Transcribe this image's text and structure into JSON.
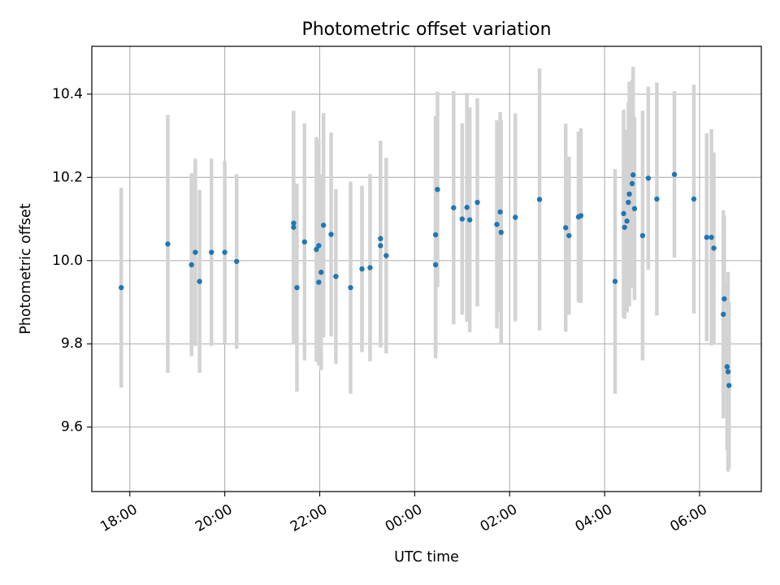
{
  "chart_data": {
    "type": "scatter",
    "title": "Photometric offset variation",
    "xlabel": "UTC time",
    "ylabel": "Photometric offset",
    "x_unit": "hours since 00:00 UTC",
    "xlim": [
      -6.8,
      7.3
    ],
    "ylim": [
      9.445,
      10.515
    ],
    "grid": true,
    "x_ticks": [
      {
        "value": -6,
        "label": "18:00"
      },
      {
        "value": -4,
        "label": "20:00"
      },
      {
        "value": -2,
        "label": "22:00"
      },
      {
        "value": 0,
        "label": "00:00"
      },
      {
        "value": 2,
        "label": "02:00"
      },
      {
        "value": 4,
        "label": "04:00"
      },
      {
        "value": 6,
        "label": "06:00"
      }
    ],
    "y_ticks": [
      {
        "value": 9.6,
        "label": "9.6"
      },
      {
        "value": 9.8,
        "label": "9.8"
      },
      {
        "value": 10.0,
        "label": "10.0"
      },
      {
        "value": 10.2,
        "label": "10.2"
      },
      {
        "value": 10.4,
        "label": "10.4"
      }
    ],
    "colors": {
      "point": "#1f77b4",
      "errorbar": "#d3d3d3",
      "grid": "#b0b0b0",
      "axis": "#000000"
    },
    "points": [
      {
        "x": -6.18,
        "y": 9.935,
        "err": 0.24
      },
      {
        "x": -5.2,
        "y": 10.04,
        "err": 0.31
      },
      {
        "x": -4.7,
        "y": 9.99,
        "err": 0.22
      },
      {
        "x": -4.62,
        "y": 10.02,
        "err": 0.225
      },
      {
        "x": -4.53,
        "y": 9.95,
        "err": 0.22
      },
      {
        "x": -4.28,
        "y": 10.02,
        "err": 0.225
      },
      {
        "x": -4.0,
        "y": 10.02,
        "err": 0.22
      },
      {
        "x": -3.75,
        "y": 9.998,
        "err": 0.21
      },
      {
        "x": -2.55,
        "y": 10.09,
        "err": 0.27
      },
      {
        "x": -2.55,
        "y": 10.08,
        "err": 0.28
      },
      {
        "x": -2.48,
        "y": 9.935,
        "err": 0.25
      },
      {
        "x": -2.32,
        "y": 10.045,
        "err": 0.285
      },
      {
        "x": -2.07,
        "y": 10.027,
        "err": 0.27
      },
      {
        "x": -2.02,
        "y": 9.948,
        "err": 0.2
      },
      {
        "x": -2.02,
        "y": 10.036,
        "err": 0.255
      },
      {
        "x": -1.97,
        "y": 9.972,
        "err": 0.235
      },
      {
        "x": -1.92,
        "y": 10.085,
        "err": 0.27
      },
      {
        "x": -1.76,
        "y": 10.063,
        "err": 0.245
      },
      {
        "x": -1.66,
        "y": 9.962,
        "err": 0.21
      },
      {
        "x": -1.35,
        "y": 9.935,
        "err": 0.255
      },
      {
        "x": -1.11,
        "y": 9.98,
        "err": 0.2
      },
      {
        "x": -0.94,
        "y": 9.983,
        "err": 0.225
      },
      {
        "x": -0.72,
        "y": 10.053,
        "err": 0.235
      },
      {
        "x": -0.72,
        "y": 10.036,
        "err": 0.245
      },
      {
        "x": -0.6,
        "y": 10.012,
        "err": 0.235
      },
      {
        "x": 0.44,
        "y": 10.062,
        "err": 0.285
      },
      {
        "x": 0.44,
        "y": 9.99,
        "err": 0.225
      },
      {
        "x": 0.48,
        "y": 10.171,
        "err": 0.235
      },
      {
        "x": 0.82,
        "y": 10.127,
        "err": 0.28
      },
      {
        "x": 1.0,
        "y": 10.1,
        "err": 0.23
      },
      {
        "x": 1.1,
        "y": 10.128,
        "err": 0.275
      },
      {
        "x": 1.16,
        "y": 10.098,
        "err": 0.27
      },
      {
        "x": 1.32,
        "y": 10.14,
        "err": 0.25
      },
      {
        "x": 1.73,
        "y": 10.087,
        "err": 0.25
      },
      {
        "x": 1.8,
        "y": 10.117,
        "err": 0.24
      },
      {
        "x": 1.82,
        "y": 10.068,
        "err": 0.27
      },
      {
        "x": 2.12,
        "y": 10.104,
        "err": 0.25
      },
      {
        "x": 2.63,
        "y": 10.147,
        "err": 0.315
      },
      {
        "x": 3.18,
        "y": 10.079,
        "err": 0.25
      },
      {
        "x": 3.25,
        "y": 10.06,
        "err": 0.19
      },
      {
        "x": 3.45,
        "y": 10.105,
        "err": 0.205
      },
      {
        "x": 3.5,
        "y": 10.108,
        "err": 0.21
      },
      {
        "x": 4.22,
        "y": 9.95,
        "err": 0.27
      },
      {
        "x": 4.4,
        "y": 10.113,
        "err": 0.25
      },
      {
        "x": 4.42,
        "y": 10.08,
        "err": 0.22
      },
      {
        "x": 4.47,
        "y": 10.095,
        "err": 0.22
      },
      {
        "x": 4.5,
        "y": 10.14,
        "err": 0.24
      },
      {
        "x": 4.52,
        "y": 10.16,
        "err": 0.27
      },
      {
        "x": 4.58,
        "y": 10.185,
        "err": 0.25
      },
      {
        "x": 4.6,
        "y": 10.206,
        "err": 0.26
      },
      {
        "x": 4.63,
        "y": 10.125,
        "err": 0.22
      },
      {
        "x": 4.8,
        "y": 10.06,
        "err": 0.3
      },
      {
        "x": 4.92,
        "y": 10.198,
        "err": 0.22
      },
      {
        "x": 5.1,
        "y": 10.148,
        "err": 0.28
      },
      {
        "x": 5.47,
        "y": 10.207,
        "err": 0.2
      },
      {
        "x": 5.88,
        "y": 10.148,
        "err": 0.275
      },
      {
        "x": 6.15,
        "y": 10.056,
        "err": 0.25
      },
      {
        "x": 6.25,
        "y": 10.056,
        "err": 0.26
      },
      {
        "x": 6.3,
        "y": 10.03,
        "err": 0.23
      },
      {
        "x": 6.52,
        "y": 9.908,
        "err": 0.2
      },
      {
        "x": 6.5,
        "y": 9.871,
        "err": 0.25
      },
      {
        "x": 6.58,
        "y": 9.745,
        "err": 0.2
      },
      {
        "x": 6.6,
        "y": 9.733,
        "err": 0.24
      },
      {
        "x": 6.62,
        "y": 9.7,
        "err": 0.2
      }
    ]
  }
}
